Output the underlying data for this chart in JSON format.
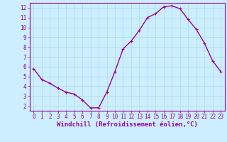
{
  "x": [
    0,
    1,
    2,
    3,
    4,
    5,
    6,
    7,
    8,
    9,
    10,
    11,
    12,
    13,
    14,
    15,
    16,
    17,
    18,
    19,
    20,
    21,
    22,
    23
  ],
  "y": [
    5.8,
    4.7,
    4.3,
    3.8,
    3.4,
    3.2,
    2.6,
    1.8,
    1.8,
    3.4,
    5.5,
    7.8,
    8.6,
    9.7,
    11.0,
    11.4,
    12.1,
    12.2,
    11.9,
    10.8,
    9.8,
    8.4,
    6.6,
    5.5
  ],
  "line_color": "#990099",
  "marker": "+",
  "marker_size": 3,
  "marker_linewidth": 0.8,
  "xlabel": "Windchill (Refroidissement éolien,°C)",
  "xlabel_fontsize": 6.5,
  "ylabel_ticks": [
    2,
    3,
    4,
    5,
    6,
    7,
    8,
    9,
    10,
    11,
    12
  ],
  "xlim": [
    -0.5,
    23.5
  ],
  "ylim": [
    1.5,
    12.5
  ],
  "bg_color": "#cceeff",
  "grid_color": "#aadddd",
  "tick_color": "#990099",
  "tick_fontsize": 5.5,
  "line_width": 1.0,
  "spine_color": "#990099"
}
